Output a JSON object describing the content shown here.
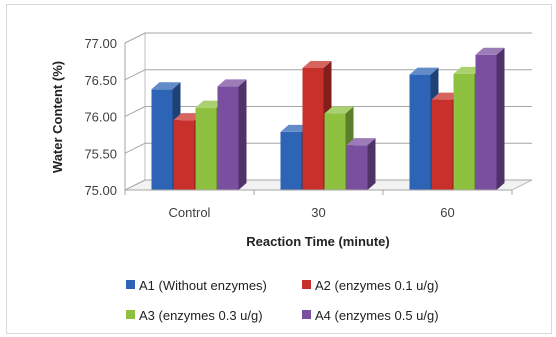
{
  "chart_data": {
    "type": "bar",
    "style": "3d-clustered-column",
    "xlabel": "Reaction Time (minute)",
    "ylabel": "Water Content (%)",
    "ylim": [
      75.0,
      77.0
    ],
    "yticks": [
      "75.00",
      "75.50",
      "76.00",
      "76.50",
      "77.00"
    ],
    "categories": [
      "Control",
      "30",
      "60"
    ],
    "series": [
      {
        "name": "A1 (Without enzymes)",
        "color": "#2e64b5",
        "values": [
          76.37,
          75.79,
          76.57
        ]
      },
      {
        "name": "A2 (enzymes 0.1 u/g)",
        "color": "#c8302c",
        "values": [
          75.95,
          76.66,
          76.23
        ]
      },
      {
        "name": "A3 (enzymes 0.3 u/g)",
        "color": "#8ec13f",
        "values": [
          76.12,
          76.04,
          76.58
        ]
      },
      {
        "name": "A4 (enzymes 0.5 u/g)",
        "color": "#7a4fa0",
        "values": [
          76.41,
          75.61,
          76.84
        ]
      }
    ],
    "grid": true,
    "legend": "bottom"
  }
}
